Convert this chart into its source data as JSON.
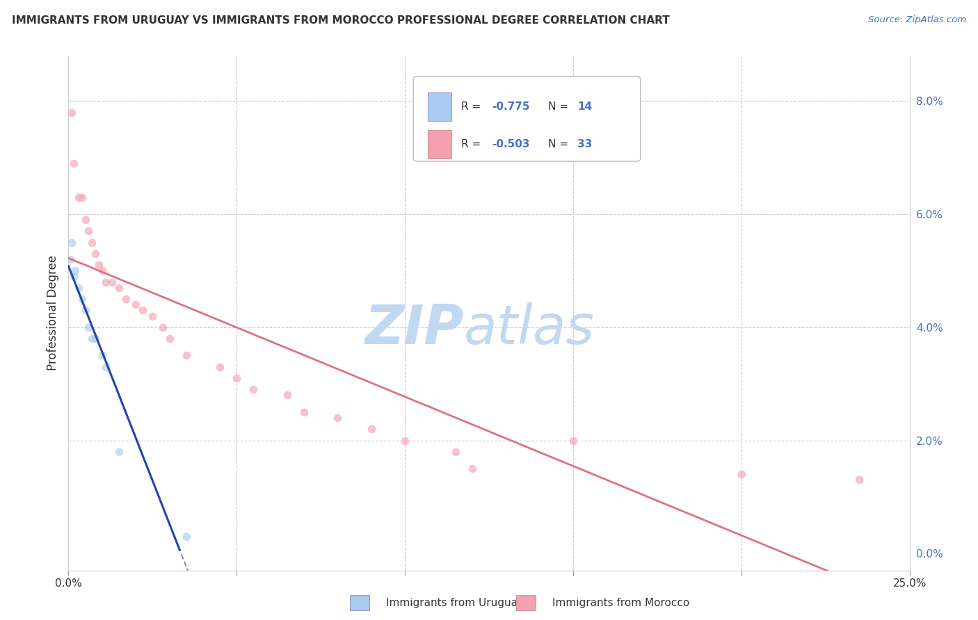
{
  "title": "IMMIGRANTS FROM URUGUAY VS IMMIGRANTS FROM MOROCCO PROFESSIONAL DEGREE CORRELATION CHART",
  "source": "Source: ZipAtlas.com",
  "ylabel": "Professional Degree",
  "right_ytick_vals": [
    0.0,
    2.0,
    4.0,
    6.0,
    8.0
  ],
  "xlim": [
    0.0,
    25.0
  ],
  "ylim": [
    -0.3,
    8.8
  ],
  "yplot_min": 0.0,
  "color_uruguay": "#aaccf0",
  "color_morocco": "#f5a0b0",
  "line_color_uruguay": "#2244aa",
  "line_color_morocco": "#e07080",
  "watermark_zip": "ZIP",
  "watermark_atlas": "atlas",
  "watermark_color": "#d5e5f5",
  "uruguay_points": [
    [
      0.05,
      5.2
    ],
    [
      0.1,
      5.5
    ],
    [
      0.15,
      4.9
    ],
    [
      0.2,
      5.0
    ],
    [
      0.3,
      4.7
    ],
    [
      0.4,
      4.5
    ],
    [
      0.5,
      4.3
    ],
    [
      0.6,
      4.0
    ],
    [
      0.7,
      3.8
    ],
    [
      0.8,
      3.8
    ],
    [
      1.0,
      3.5
    ],
    [
      1.1,
      3.3
    ],
    [
      1.5,
      1.8
    ],
    [
      3.5,
      0.3
    ]
  ],
  "morocco_points": [
    [
      0.1,
      7.8
    ],
    [
      0.15,
      6.9
    ],
    [
      0.3,
      6.3
    ],
    [
      0.4,
      6.3
    ],
    [
      0.5,
      5.9
    ],
    [
      0.6,
      5.7
    ],
    [
      0.7,
      5.5
    ],
    [
      0.8,
      5.3
    ],
    [
      0.9,
      5.1
    ],
    [
      1.0,
      5.0
    ],
    [
      1.1,
      4.8
    ],
    [
      1.3,
      4.8
    ],
    [
      1.5,
      4.7
    ],
    [
      1.7,
      4.5
    ],
    [
      2.0,
      4.4
    ],
    [
      2.2,
      4.3
    ],
    [
      2.5,
      4.2
    ],
    [
      2.8,
      4.0
    ],
    [
      3.0,
      3.8
    ],
    [
      3.5,
      3.5
    ],
    [
      4.5,
      3.3
    ],
    [
      5.0,
      3.1
    ],
    [
      5.5,
      2.9
    ],
    [
      6.5,
      2.8
    ],
    [
      7.0,
      2.5
    ],
    [
      8.0,
      2.4
    ],
    [
      9.0,
      2.2
    ],
    [
      10.0,
      2.0
    ],
    [
      11.5,
      1.8
    ],
    [
      12.0,
      1.5
    ],
    [
      15.0,
      2.0
    ],
    [
      20.0,
      1.4
    ],
    [
      23.5,
      1.3
    ]
  ],
  "grid_color": "#cccccc",
  "background_color": "#ffffff",
  "dot_size": 70,
  "dot_alpha": 0.65
}
